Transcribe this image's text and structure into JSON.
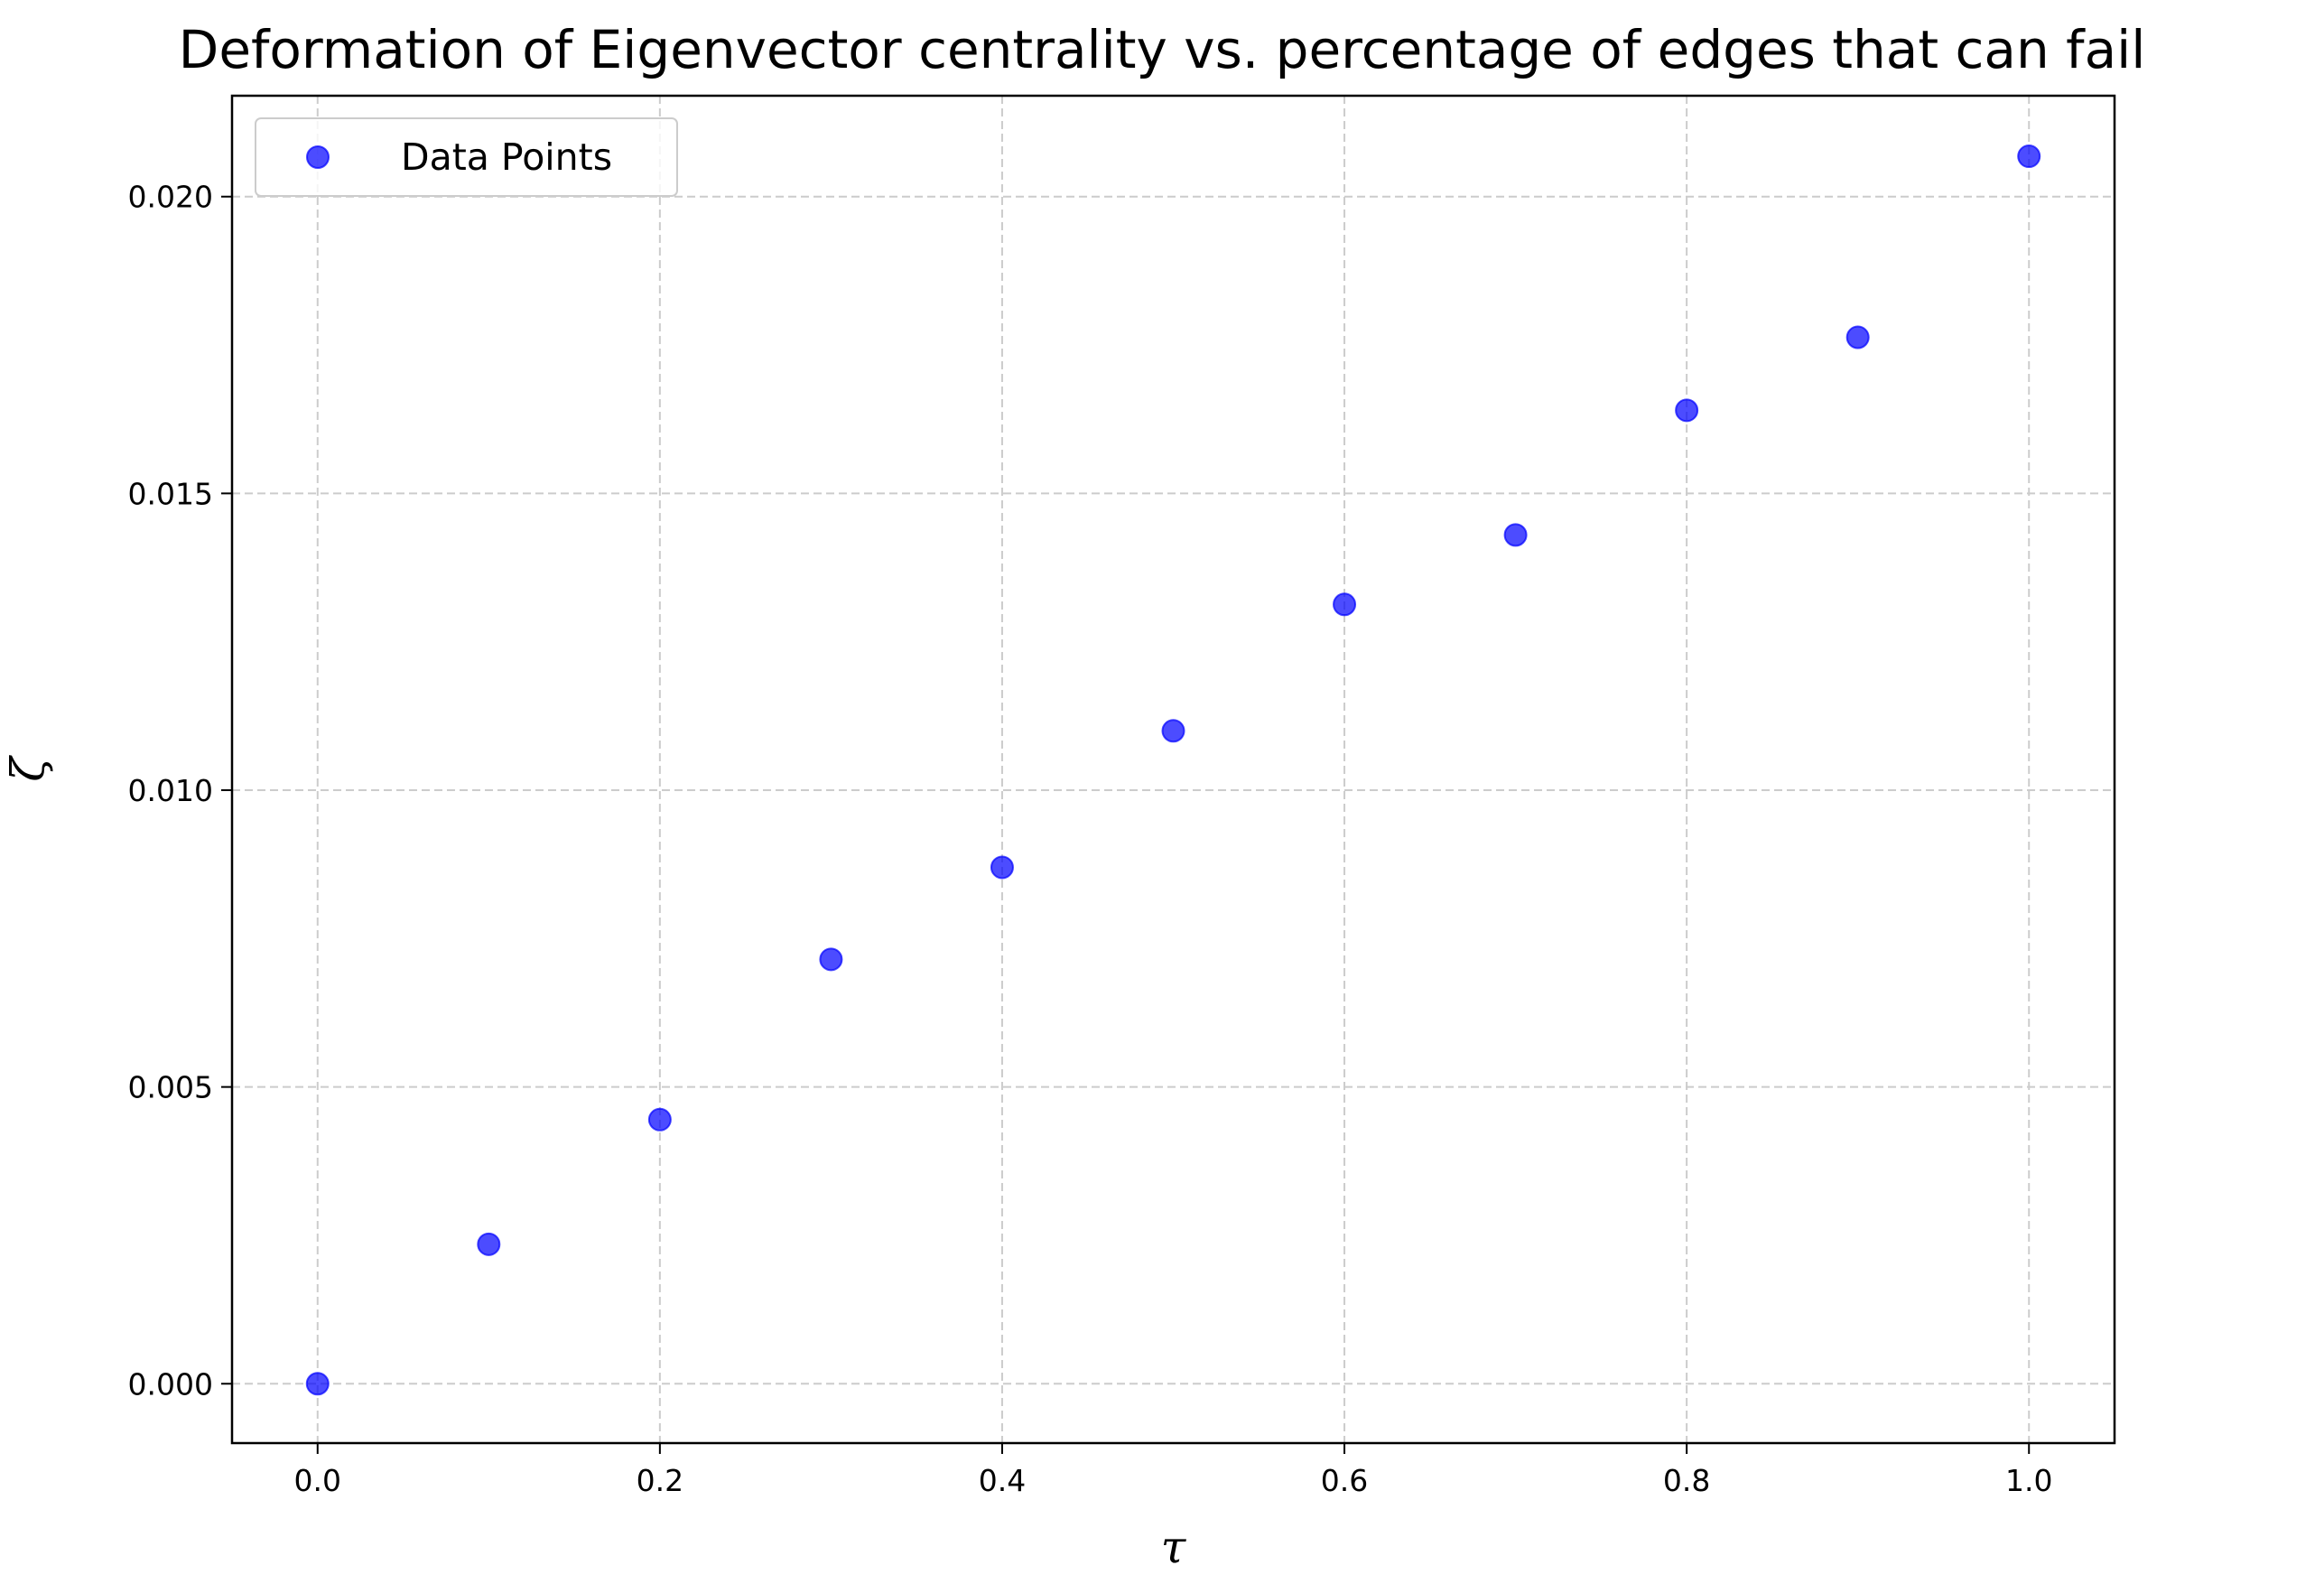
{
  "chart_data": {
    "type": "scatter",
    "title": "Deformation of Eigenvector centrality vs. percentage of edges that can fail",
    "xlabel": "τ",
    "ylabel": "ζ",
    "xlim": [
      -0.05,
      1.05
    ],
    "ylim": [
      -0.001,
      0.0217
    ],
    "x_ticks": [
      0.0,
      0.2,
      0.4,
      0.6,
      0.8,
      1.0
    ],
    "x_tick_labels": [
      "0.0",
      "0.2",
      "0.4",
      "0.6",
      "0.8",
      "1.0"
    ],
    "y_ticks": [
      0.0,
      0.005,
      0.01,
      0.015,
      0.02
    ],
    "y_tick_labels": [
      "0.000",
      "0.005",
      "0.010",
      "0.015",
      "0.020"
    ],
    "grid": true,
    "legend_position": "top-left",
    "series": [
      {
        "name": "Data Points",
        "color": "#0000ff",
        "x": [
          0.0,
          0.1,
          0.2,
          0.3,
          0.4,
          0.5,
          0.6,
          0.7,
          0.8,
          0.9,
          1.0
        ],
        "y": [
          0.0,
          0.00235,
          0.00445,
          0.00715,
          0.0087,
          0.011,
          0.01313,
          0.0143,
          0.0164,
          0.01763,
          0.02068
        ]
      }
    ]
  }
}
